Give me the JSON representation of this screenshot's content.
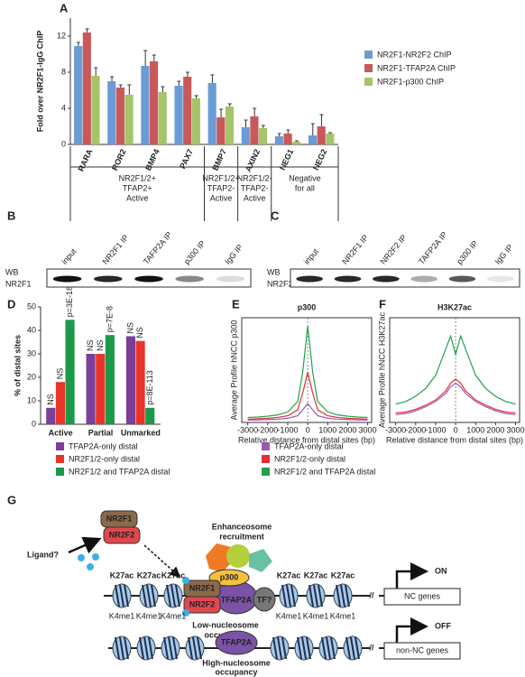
{
  "chart_data": [
    {
      "type": "bar",
      "panel": "A",
      "y_label": "Fold over NR2F1-IgG ChIP",
      "categories": [
        "RARA",
        "ROR2",
        "BMP4",
        "PAX7",
        "BMP7",
        "AXIN2",
        "NEG1",
        "NEG2"
      ],
      "series": [
        {
          "name": "NR2F1-NR2F2 ChIP",
          "color": "#6b9bd6",
          "values": [
            10.9,
            7.0,
            8.7,
            6.5,
            6.8,
            1.9,
            0.9,
            1.0
          ],
          "errors": [
            0.4,
            0.5,
            1.7,
            0.5,
            0.9,
            0.8,
            0.3,
            1.3
          ]
        },
        {
          "name": "NR2F1-TFAP2A ChIP",
          "color": "#c9585a",
          "values": [
            12.4,
            6.3,
            9.2,
            7.5,
            3.0,
            3.1,
            1.2,
            2.0
          ],
          "errors": [
            0.4,
            0.3,
            0.7,
            0.5,
            0.9,
            0.9,
            0.4,
            1.3
          ]
        },
        {
          "name": "NR2F1-p300 ChIP",
          "color": "#a6c46a",
          "values": [
            7.6,
            5.5,
            5.8,
            5.1,
            4.2,
            1.8,
            0.3,
            1.2
          ],
          "errors": [
            0.9,
            1.1,
            0.6,
            0.3,
            0.3,
            0.3,
            0.1,
            0.1
          ]
        }
      ],
      "groups": [
        [
          "NR2F1/2+",
          "TFAP2+",
          "Active"
        ],
        [
          "NR2F1/2+",
          "TFAP2-",
          "Active"
        ],
        [
          "NR2F1/2-",
          "TFAP2-",
          "Active"
        ],
        [
          "Negative",
          "for all"
        ]
      ],
      "ylim": [
        0,
        14
      ],
      "yticks": [
        0,
        4,
        8,
        12
      ]
    },
    {
      "type": "bar",
      "panel": "D",
      "y_label": "% of  distal sites",
      "categories": [
        "Active",
        "Partial",
        "Unmarked"
      ],
      "series": [
        {
          "name": "TFAP2A-only distal",
          "color": "#7b3f98",
          "values": [
            7,
            30,
            37.5
          ],
          "annotations": [
            "NS",
            "NS",
            "NS"
          ]
        },
        {
          "name": "NR2F1/2-only distal",
          "color": "#e8352a",
          "values": [
            18,
            30,
            35.5
          ],
          "annotations": [
            "NS",
            "NS",
            "NS"
          ]
        },
        {
          "name": "NR2F1/2 and TFAP2A distal",
          "color": "#1a9a48",
          "values": [
            44.5,
            38,
            7
          ],
          "annotations": [
            "p=3E-183",
            "p=7E-8",
            "p=8E-113"
          ]
        }
      ],
      "ylim": [
        0,
        50
      ],
      "yticks": [
        0,
        10,
        20,
        30,
        40,
        50
      ]
    },
    {
      "type": "line",
      "panel": "E",
      "title": "p300",
      "y_label": "Average Profile hNCC p300",
      "x_label": "Relative distance from distal sites (bp)",
      "x": [
        -3000,
        -2500,
        -2000,
        -1500,
        -1000,
        -500,
        -250,
        0,
        250,
        500,
        1000,
        1500,
        2000,
        2500,
        3000
      ],
      "series": [
        {
          "name": "TFAP2A-only distal",
          "color": "#9b59b6",
          "values": [
            0.6,
            0.6,
            0.7,
            0.8,
            1,
            1.6,
            3,
            4.5,
            3,
            1.6,
            1,
            0.8,
            0.7,
            0.6,
            0.6
          ]
        },
        {
          "name": "NR2F1/2-only distal",
          "color": "#e03030",
          "values": [
            0.8,
            0.9,
            1,
            1.2,
            1.6,
            3,
            7,
            12,
            7,
            3,
            1.6,
            1.2,
            1,
            0.9,
            0.8
          ]
        },
        {
          "name": "NR2F1/2 and TFAP2A distal",
          "color": "#22a04a",
          "values": [
            1.2,
            1.3,
            1.5,
            1.8,
            2.5,
            5,
            12,
            23,
            12,
            5,
            2.5,
            1.8,
            1.5,
            1.3,
            1.2
          ]
        }
      ],
      "xlim": [
        -3300,
        3200
      ],
      "xticks": [
        -3000,
        -2000,
        -1000,
        0,
        1000,
        2000,
        3000
      ],
      "ylim": [
        0,
        25
      ]
    },
    {
      "type": "line",
      "panel": "F",
      "title": "H3K27ac",
      "y_label": "Average Profile hNCC H3K27ac",
      "x_label": "Relative distance from distal sites (bp)",
      "x": [
        -3000,
        -2500,
        -2000,
        -1500,
        -1000,
        -500,
        -250,
        0,
        250,
        500,
        1000,
        1500,
        2000,
        2500,
        3000
      ],
      "series": [
        {
          "color": "#9b59b6",
          "values": [
            1.5,
            1.7,
            2.2,
            3,
            4,
            5.5,
            6.8,
            7.5,
            6.8,
            5.5,
            4,
            3,
            2.2,
            1.7,
            1.5
          ]
        },
        {
          "color": "#e03030",
          "values": [
            1.8,
            2,
            2.5,
            3.3,
            4.3,
            6,
            7.5,
            8.3,
            7.5,
            6,
            4.3,
            3.3,
            2.5,
            2,
            1.8
          ]
        },
        {
          "color": "#22a04a",
          "values": [
            3.5,
            4,
            5,
            6.5,
            9,
            14,
            16.5,
            13,
            16.5,
            14,
            9,
            6.5,
            5,
            4,
            3.5
          ]
        }
      ],
      "xlim": [
        -3300,
        3200
      ],
      "xticks": [
        -3000,
        -2000,
        -1000,
        0,
        1000,
        2000,
        3000
      ],
      "ylim": [
        0,
        20
      ]
    }
  ],
  "blots": [
    {
      "panel": "B",
      "wb": "WB",
      "target": "NR2F1",
      "lanes": [
        "input",
        "NR2F1 IP",
        "TAFP2A IP",
        "p300 IP",
        "IgG IP"
      ]
    },
    {
      "panel": "C",
      "wb": "WB",
      "target": "NR2F2",
      "lanes": [
        "input",
        "NR2F1 IP",
        "NR2F2 IP",
        "TAFP2A IP",
        "p300 IP",
        "IgG IP"
      ]
    }
  ],
  "diagram": {
    "panel": "G",
    "ligand": "Ligand?",
    "nr2f1": "NR2F1",
    "nr2f2": "NR2F2",
    "recruitment": [
      "Enhanceosome",
      "recruitment"
    ],
    "p300": "p300",
    "tfap2a": "TFAP2A",
    "tf": "TF?",
    "k27ac": "K27ac",
    "k4me1": "K4me1",
    "low": [
      "Low-nucleosome",
      "occupancy"
    ],
    "on": "ON",
    "nc_genes": "NC genes",
    "off": "OFF",
    "non_nc_genes": "non-NC genes",
    "high": [
      "High-nucleosome",
      "occupancy"
    ]
  }
}
